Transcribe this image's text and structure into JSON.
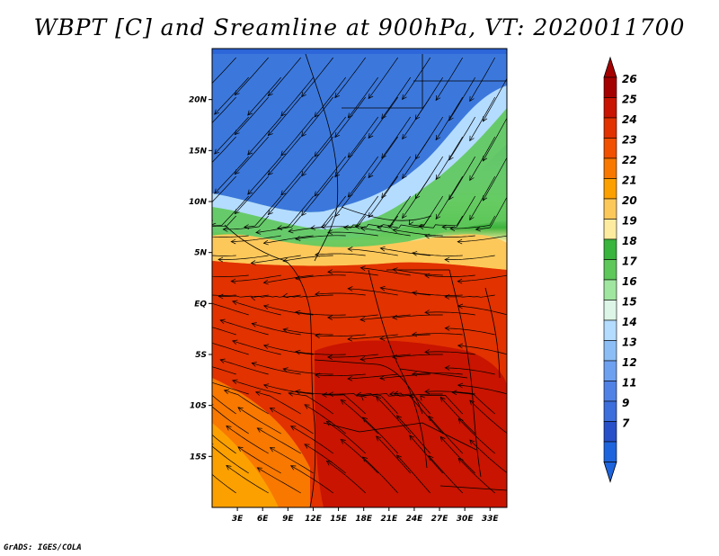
{
  "title": "WBPT [C] and Sreamline at 900hPa, VT: 2020011700",
  "credit": "GrADS: IGES/COLA",
  "map": {
    "lon_ticks": [
      "3E",
      "6E",
      "9E",
      "12E",
      "15E",
      "18E",
      "21E",
      "24E",
      "27E",
      "30E",
      "33E"
    ],
    "lat_ticks": [
      "20N",
      "15N",
      "10N",
      "5N",
      "EQ",
      "5S",
      "10S",
      "15S"
    ],
    "lon_range": [
      0,
      35
    ],
    "lat_range": [
      -20,
      25
    ]
  },
  "colorbar": {
    "labels": [
      "26",
      "25",
      "24",
      "23",
      "22",
      "21",
      "20",
      "19",
      "18",
      "17",
      "16",
      "15",
      "14",
      "13",
      "12",
      "11",
      "9",
      "7"
    ],
    "colors": [
      "#a50000",
      "#c81400",
      "#e13200",
      "#f05000",
      "#f87800",
      "#fca000",
      "#fdc85a",
      "#fdeca0",
      "#39b43c",
      "#5ec85a",
      "#a0e6a0",
      "#dcf5e6",
      "#b4dcff",
      "#8cbef5",
      "#6ea0f0",
      "#5082e6",
      "#3c6edc",
      "#2850c8",
      "#1e64dc"
    ],
    "top_arrow_color": "#a50000",
    "bottom_arrow_color": "#1e64dc"
  }
}
